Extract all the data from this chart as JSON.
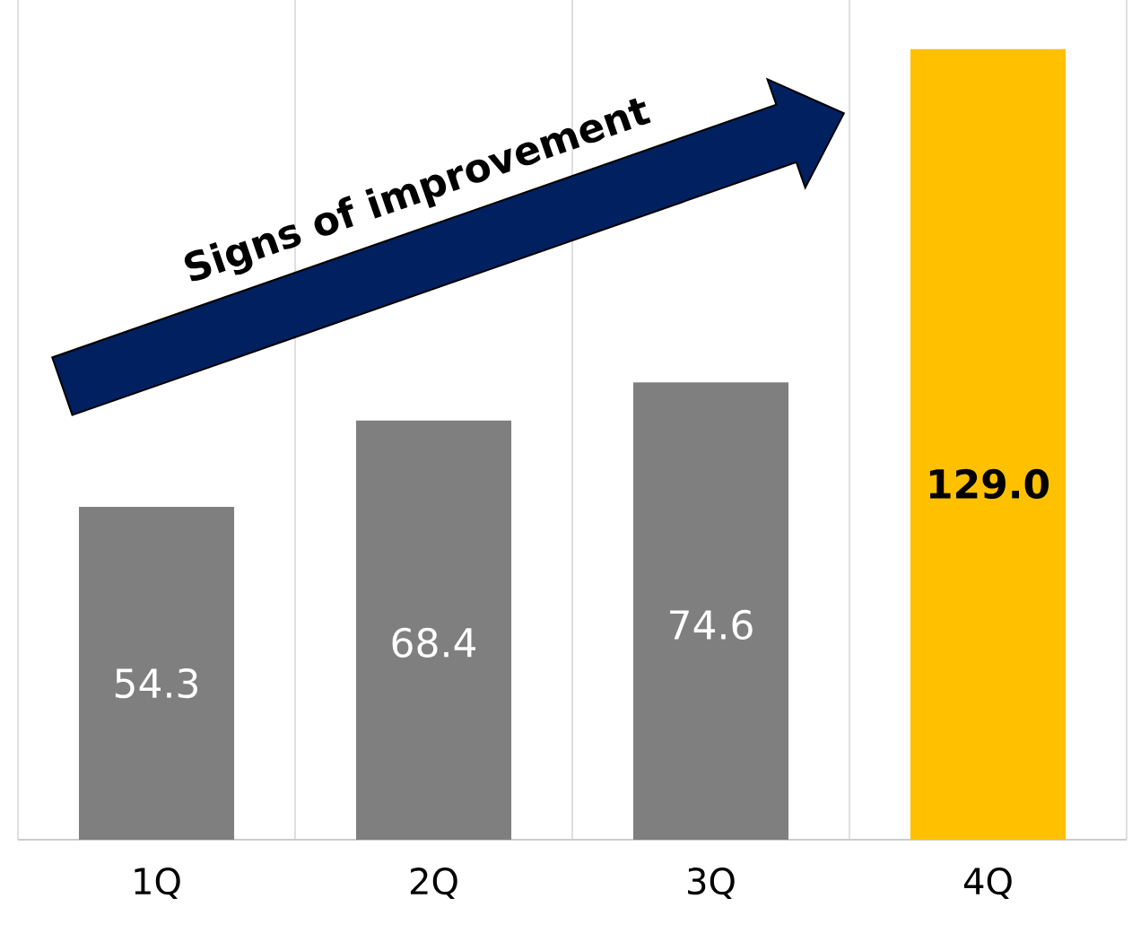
{
  "chart_data": {
    "type": "bar",
    "categories": [
      "1Q",
      "2Q",
      "3Q",
      "4Q"
    ],
    "values": [
      54.3,
      68.4,
      74.6,
      129.0
    ],
    "colors": [
      "#7f7f7f",
      "#7f7f7f",
      "#7f7f7f",
      "#ffc000"
    ],
    "value_labels": [
      "54.3",
      "68.4",
      "74.6",
      "129.0"
    ],
    "grid": "x",
    "annotations": [
      "Signs of improvement"
    ]
  }
}
